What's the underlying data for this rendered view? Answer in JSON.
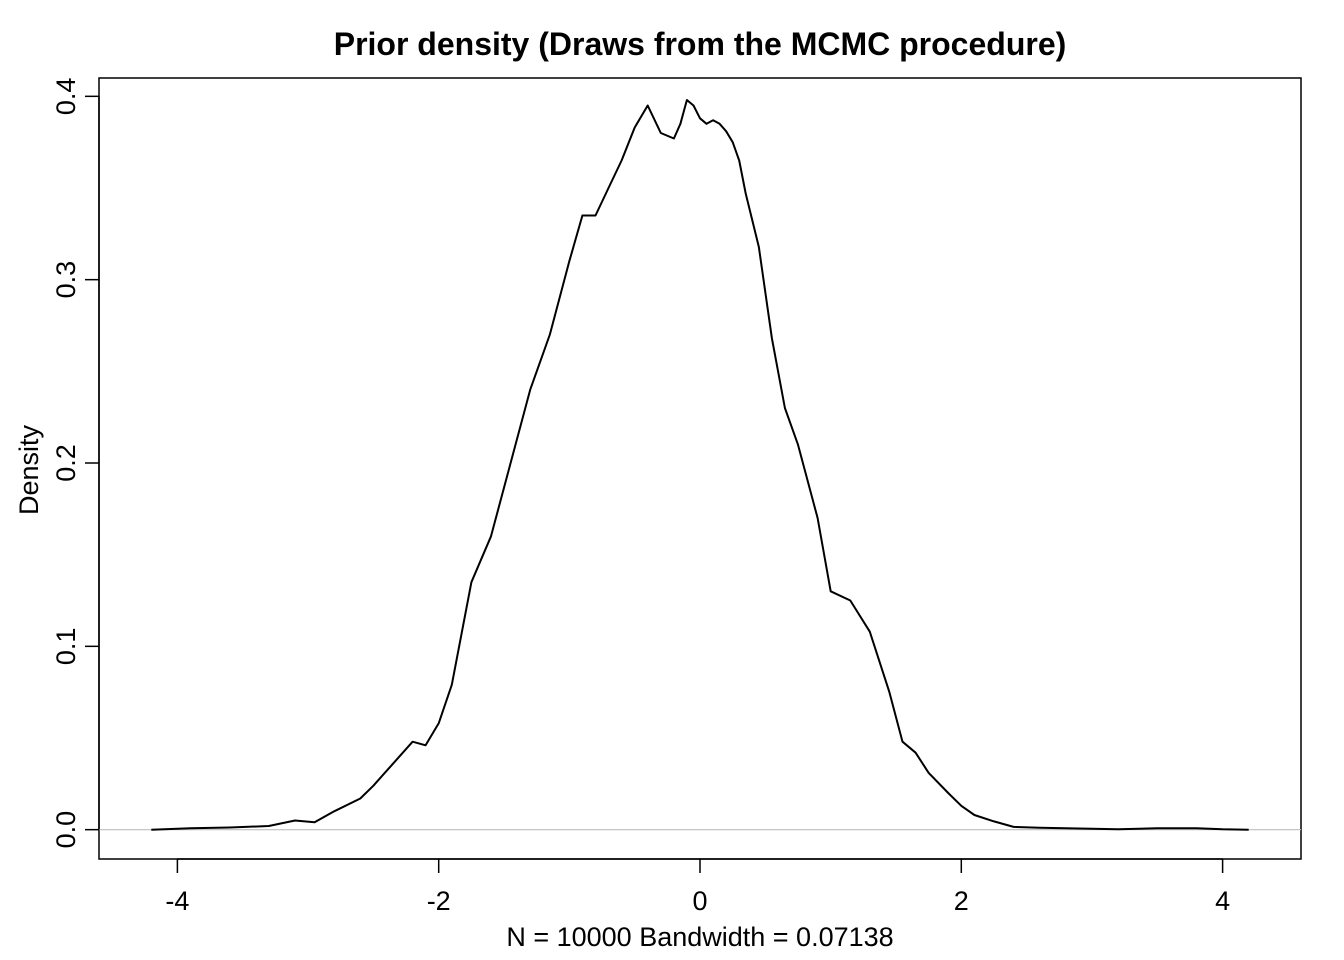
{
  "chart_data": {
    "type": "line",
    "title": "Prior density (Draws from the MCMC procedure)",
    "xlabel": "N = 10000   Bandwidth = 0.07138",
    "ylabel": "Density",
    "xlim": [
      -4.6,
      4.6
    ],
    "ylim": [
      -0.016,
      0.41
    ],
    "x_ticks": [
      -4,
      -2,
      0,
      2,
      4
    ],
    "x_tick_labels": [
      "-4",
      "-2",
      "0",
      "2",
      "4"
    ],
    "y_ticks": [
      0.0,
      0.1,
      0.2,
      0.3,
      0.4
    ],
    "y_tick_labels": [
      "0.0",
      "0.1",
      "0.2",
      "0.3",
      "0.4"
    ],
    "grid": false,
    "reference_line": {
      "y": 0,
      "color": "#bebebe"
    },
    "series": [
      {
        "color": "#000000",
        "x": [
          -4.2,
          -3.9,
          -3.6,
          -3.3,
          -3.1,
          -2.95,
          -2.8,
          -2.6,
          -2.5,
          -2.35,
          -2.2,
          -2.1,
          -2.0,
          -1.9,
          -1.75,
          -1.6,
          -1.45,
          -1.3,
          -1.15,
          -1.0,
          -0.9,
          -0.8,
          -0.7,
          -0.6,
          -0.5,
          -0.4,
          -0.3,
          -0.2,
          -0.15,
          -0.1,
          -0.05,
          0.0,
          0.05,
          0.1,
          0.15,
          0.2,
          0.25,
          0.3,
          0.35,
          0.45,
          0.55,
          0.65,
          0.75,
          0.9,
          1.0,
          1.15,
          1.3,
          1.45,
          1.55,
          1.65,
          1.75,
          1.9,
          2.0,
          2.1,
          2.25,
          2.4,
          2.6,
          2.8,
          3.0,
          3.2,
          3.5,
          3.8,
          4.0,
          4.2
        ],
        "y": [
          0.0,
          0.0008,
          0.0012,
          0.002,
          0.005,
          0.004,
          0.01,
          0.017,
          0.024,
          0.036,
          0.048,
          0.046,
          0.058,
          0.079,
          0.135,
          0.16,
          0.2,
          0.24,
          0.27,
          0.31,
          0.335,
          0.335,
          0.35,
          0.365,
          0.383,
          0.395,
          0.38,
          0.377,
          0.385,
          0.398,
          0.395,
          0.388,
          0.385,
          0.387,
          0.385,
          0.381,
          0.375,
          0.365,
          0.347,
          0.318,
          0.268,
          0.23,
          0.21,
          0.17,
          0.13,
          0.125,
          0.108,
          0.075,
          0.048,
          0.042,
          0.031,
          0.02,
          0.013,
          0.008,
          0.0045,
          0.0015,
          0.001,
          0.0008,
          0.0005,
          0.0002,
          0.0008,
          0.0008,
          0.0002,
          0.0
        ],
        "_note_ignore": ""
      }
    ]
  }
}
